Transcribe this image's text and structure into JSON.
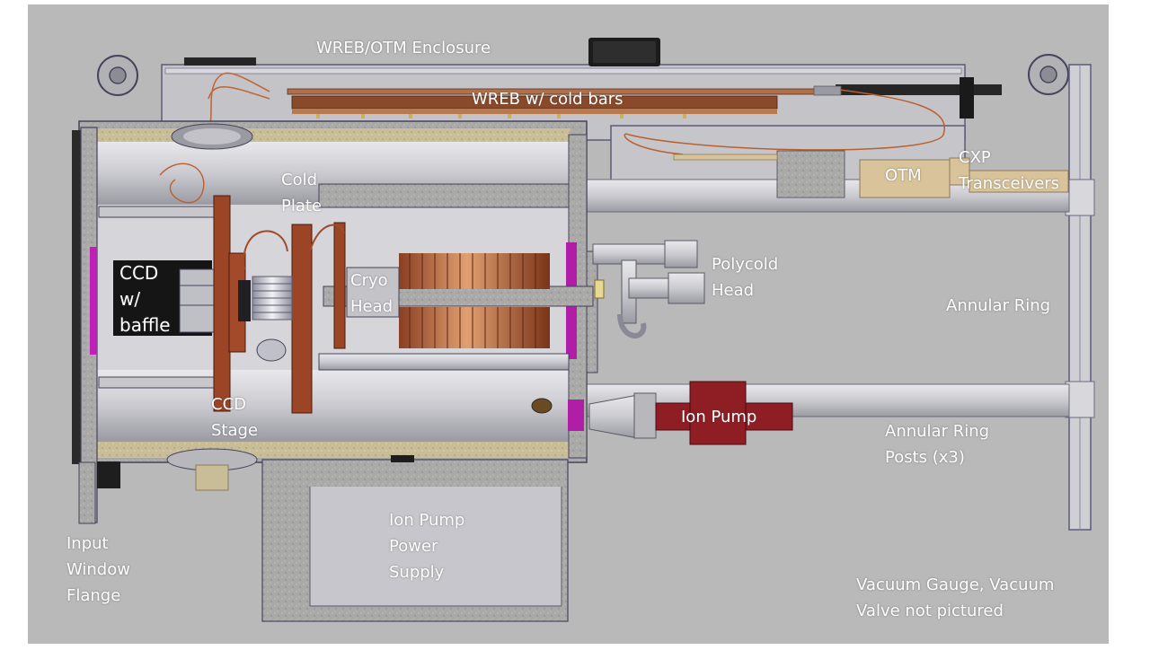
{
  "diagram": {
    "labels": {
      "wreb_otm_enclosure": "WREB/OTM Enclosure",
      "wreb_cold_bars": "WREB w/ cold bars",
      "cold_plate": [
        "Cold",
        "Plate"
      ],
      "otm": "OTM",
      "cxp_transceivers": [
        "CXP",
        "Transceivers"
      ],
      "ccd_baffle": [
        "CCD",
        "w/",
        "baffle"
      ],
      "cryo_head": [
        "Cryo",
        "Head"
      ],
      "polycold_head": [
        "Polycold",
        "Head"
      ],
      "annular_ring": "Annular Ring",
      "ccd_stage": [
        "CCD",
        "Stage"
      ],
      "ion_pump": "Ion Pump",
      "annular_ring_posts": [
        "Annular Ring",
        "Posts (x3)"
      ],
      "ion_pump_power_supply": [
        "Ion Pump",
        "Power",
        "Supply"
      ],
      "input_window_flange": [
        "Input",
        "Window",
        "Flange"
      ],
      "vacuum_note": [
        "Vacuum Gauge, Vacuum",
        "Valve not pictured"
      ]
    },
    "colors": {
      "background": "#b9b9b9",
      "cryostat_body": "#d4d4d8",
      "copper": "#a0482c",
      "ion_pump": "#8e1e24",
      "magenta_seal": "#b01ea8",
      "label_text": "#ffffff"
    }
  }
}
